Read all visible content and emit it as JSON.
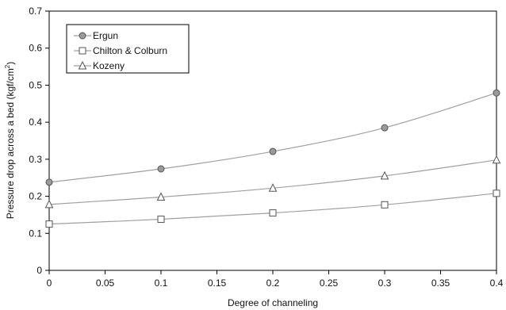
{
  "chart_data": {
    "type": "line",
    "title": "",
    "xlabel": "Degree of channeling",
    "ylabel": "Pressure drop across a bed (kgf/cm",
    "ylabel_sup": "2",
    "ylabel_end": ")",
    "x": [
      0,
      0.1,
      0.2,
      0.3,
      0.4
    ],
    "xlim": [
      0,
      0.4
    ],
    "ylim": [
      0,
      0.7
    ],
    "xticks": [
      "0",
      "0.05",
      "0.1",
      "0.15",
      "0.2",
      "0.25",
      "0.3",
      "0.35",
      "0.4"
    ],
    "yticks": [
      "0",
      "0.1",
      "0.2",
      "0.3",
      "0.4",
      "0.5",
      "0.6",
      "0.7"
    ],
    "grid": false,
    "legend_position": "top-left",
    "series": [
      {
        "name": "Ergun",
        "marker": "circle",
        "values": [
          0.238,
          0.274,
          0.321,
          0.385,
          0.479
        ]
      },
      {
        "name": "Chilton & Colburn",
        "marker": "square",
        "values": [
          0.125,
          0.138,
          0.155,
          0.177,
          0.208
        ]
      },
      {
        "name": "Kozeny",
        "marker": "triangle",
        "values": [
          0.178,
          0.198,
          0.222,
          0.255,
          0.298
        ]
      }
    ],
    "colors": {
      "line": "#a0a0a0",
      "marker_stroke": "#555555",
      "circle_fill": "#9a9a9a",
      "axis": "#000000"
    }
  }
}
